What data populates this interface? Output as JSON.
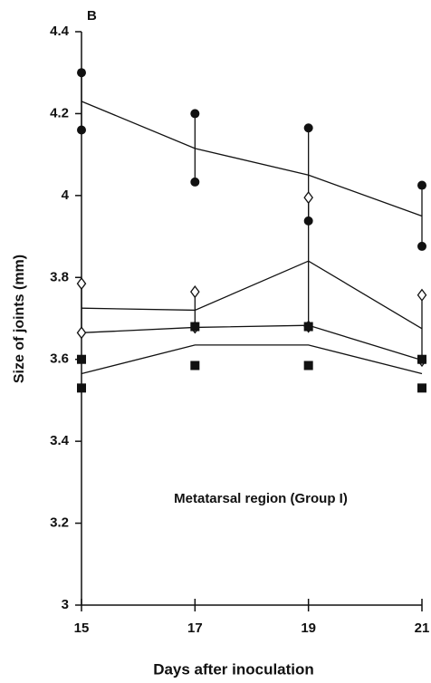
{
  "chart_data": {
    "type": "line",
    "panel_label": "B",
    "annotation": "Metatarsal region (Group I)",
    "x_label": "Days after inoculation",
    "y_label": "Size of joints (mm)",
    "x": [
      15,
      17,
      19,
      21
    ],
    "xlim": [
      15,
      21
    ],
    "xticks": [
      15,
      17,
      19,
      21
    ],
    "ylim": [
      3,
      4.4
    ],
    "yticks": [
      3,
      3.2,
      3.4,
      3.6,
      3.8,
      4,
      4.2,
      4.4
    ],
    "color": "#111111",
    "series": [
      {
        "type": "line",
        "values": [
          4.23,
          4.115,
          4.05,
          3.95
        ]
      },
      {
        "type": "line",
        "values": [
          3.725,
          3.72,
          3.84,
          3.675
        ]
      },
      {
        "type": "line",
        "values": [
          3.665,
          3.678,
          3.683,
          3.598
        ]
      },
      {
        "type": "line",
        "values": [
          3.565,
          3.635,
          3.635,
          3.565
        ]
      },
      {
        "type": "range",
        "marker": "circle",
        "whisker": true,
        "low": [
          4.16,
          4.033,
          3.938,
          3.876
        ],
        "high": [
          4.3,
          4.2,
          4.165,
          4.025
        ]
      },
      {
        "type": "range",
        "marker": "diamond",
        "whisker": true,
        "low": [
          3.665,
          3.678,
          3.68,
          3.597
        ],
        "high": [
          3.785,
          3.765,
          3.995,
          3.757
        ]
      },
      {
        "type": "range",
        "marker": "square",
        "whisker": false,
        "low": [
          3.53,
          3.585,
          3.585,
          3.53
        ],
        "high": [
          3.6,
          3.68,
          3.68,
          3.6
        ]
      }
    ]
  }
}
